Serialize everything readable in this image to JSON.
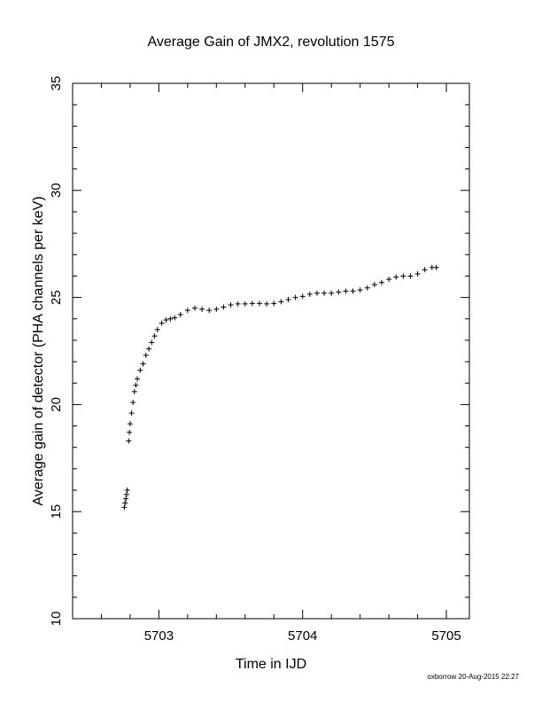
{
  "chart_data": {
    "type": "scatter",
    "title": "Average Gain of JMX2, revolution 1575",
    "xlabel": "Time in IJD",
    "ylabel": "Average gain of detector (PHA channels per keV)",
    "xlim": [
      5702.4,
      5705.16
    ],
    "ylim": [
      10,
      35
    ],
    "xticks": [
      5703,
      5704,
      5705
    ],
    "yticks": [
      10,
      15,
      20,
      25,
      30,
      35
    ],
    "grid": false,
    "legend": "none",
    "marker": "plus",
    "color": "#000000",
    "series": [
      {
        "x": [
          5702.76,
          5702.765,
          5702.77,
          5702.775,
          5702.78,
          5702.79,
          5702.795,
          5702.8,
          5702.81,
          5702.82,
          5702.83,
          5702.84,
          5702.85,
          5702.87,
          5702.89,
          5702.91,
          5702.93,
          5702.95,
          5702.97,
          5702.99,
          5703.02,
          5703.05,
          5703.08,
          5703.11,
          5703.15,
          5703.2,
          5703.25,
          5703.3,
          5703.35,
          5703.4,
          5703.45,
          5703.5,
          5703.55,
          5703.6,
          5703.65,
          5703.7,
          5703.75,
          5703.8,
          5703.85,
          5703.9,
          5703.95,
          5704.0,
          5704.05,
          5704.1,
          5704.15,
          5704.2,
          5704.25,
          5704.3,
          5704.35,
          5704.4,
          5704.45,
          5704.5,
          5704.55,
          5704.6,
          5704.65,
          5704.7,
          5704.75,
          5704.8,
          5704.85,
          5704.9,
          5704.93
        ],
        "y": [
          15.2,
          15.4,
          15.6,
          15.8,
          16.0,
          18.3,
          18.7,
          19.1,
          19.6,
          20.1,
          20.6,
          20.9,
          21.2,
          21.6,
          21.9,
          22.3,
          22.6,
          22.9,
          23.2,
          23.5,
          23.8,
          23.95,
          24.0,
          24.05,
          24.2,
          24.4,
          24.5,
          24.45,
          24.4,
          24.45,
          24.55,
          24.65,
          24.7,
          24.7,
          24.72,
          24.72,
          24.7,
          24.72,
          24.8,
          24.9,
          25.0,
          25.05,
          25.15,
          25.2,
          25.2,
          25.2,
          25.25,
          25.3,
          25.3,
          25.35,
          25.45,
          25.6,
          25.7,
          25.85,
          25.95,
          26.0,
          26.0,
          26.1,
          26.3,
          26.4,
          26.4
        ]
      }
    ]
  },
  "footer": {
    "credit": "oxborrow 20-Aug-2015 22:27"
  }
}
